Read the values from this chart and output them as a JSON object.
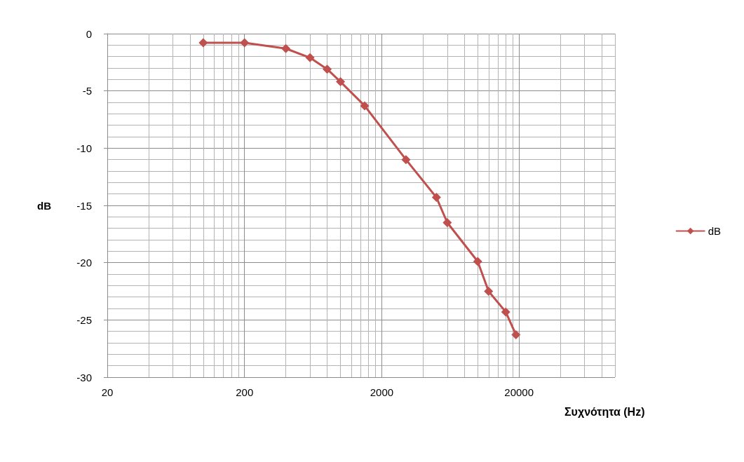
{
  "chart_data": {
    "type": "line",
    "xlabel": "Συχνότητα (Hz)",
    "ylabel": "dB",
    "log": "x",
    "x": [
      100,
      200,
      400,
      600,
      800,
      1000,
      1500,
      3000,
      5000,
      6000,
      10000,
      12000,
      16000,
      19000
    ],
    "xlim": [
      20,
      100000
    ],
    "xticks": [
      20,
      200,
      2000,
      20000
    ],
    "ylim": [
      -30,
      0
    ],
    "yticks": [
      -30,
      -25,
      -20,
      -15,
      -10,
      -5,
      0
    ],
    "grid": true,
    "legend": "right",
    "marker": "diamond",
    "line_style": "solid",
    "series": [
      {
        "name": "dB",
        "color": "#c0504d",
        "values": [
          -0.8,
          -0.8,
          -1.3,
          -2.1,
          -3.1,
          -4.2,
          -6.3,
          -11,
          -14.3,
          -16.5,
          -19.9,
          -22.5,
          -24.3,
          -26.3
        ]
      }
    ]
  }
}
